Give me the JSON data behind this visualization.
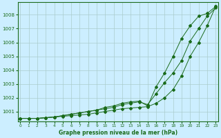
{
  "xlabel": "Graphe pression niveau de la mer (hPa)",
  "bg_color": "#cceeff",
  "grid_color": "#aacccc",
  "line_color": "#1a6b1a",
  "ylim": [
    1000.3,
    1008.9
  ],
  "xlim": [
    -0.3,
    23.3
  ],
  "yticks": [
    1001,
    1002,
    1003,
    1004,
    1005,
    1006,
    1007,
    1008
  ],
  "xticks": [
    0,
    1,
    2,
    3,
    4,
    5,
    6,
    7,
    8,
    9,
    10,
    11,
    12,
    13,
    14,
    15,
    16,
    17,
    18,
    19,
    20,
    21,
    22,
    23
  ],
  "line1": [
    1000.5,
    1000.5,
    1000.5,
    1000.55,
    1000.6,
    1000.65,
    1000.7,
    1000.75,
    1000.8,
    1000.9,
    1001.0,
    1001.1,
    1001.2,
    1001.25,
    1001.3,
    1001.35,
    1001.6,
    1002.0,
    1002.6,
    1003.6,
    1005.0,
    1006.0,
    1007.2,
    1008.6
  ],
  "line2": [
    1000.5,
    1000.5,
    1000.5,
    1000.55,
    1000.6,
    1000.7,
    1000.8,
    1000.9,
    1001.0,
    1001.1,
    1001.2,
    1001.3,
    1001.5,
    1001.6,
    1001.7,
    1001.5,
    1002.3,
    1003.1,
    1003.8,
    1004.7,
    1006.1,
    1007.0,
    1007.9,
    1008.5
  ],
  "line3": [
    1000.5,
    1000.5,
    1000.5,
    1000.55,
    1000.6,
    1000.7,
    1000.8,
    1000.9,
    1001.0,
    1001.1,
    1001.3,
    1001.4,
    1001.6,
    1001.7,
    1001.75,
    1001.4,
    1002.8,
    1003.8,
    1005.0,
    1006.3,
    1007.2,
    1007.9,
    1008.1,
    1008.6
  ]
}
